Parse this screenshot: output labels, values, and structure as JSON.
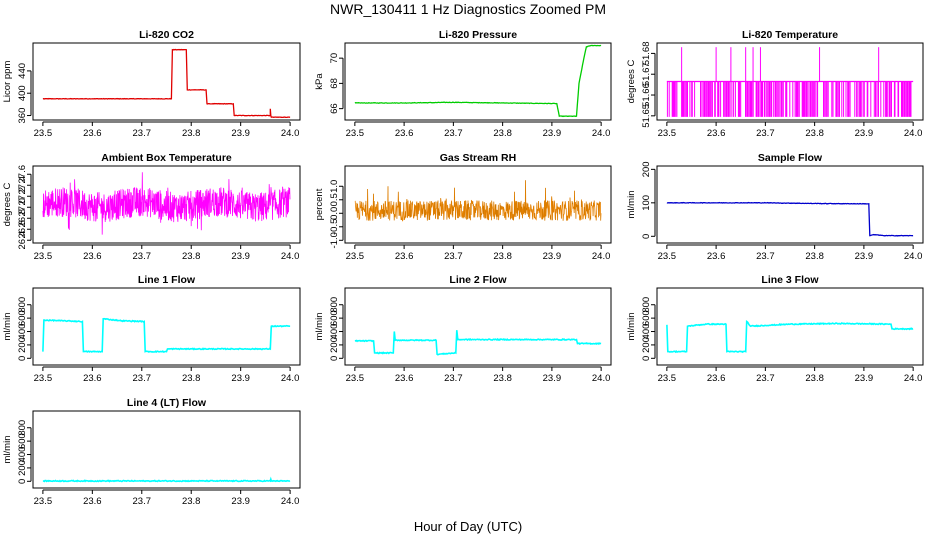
{
  "figure": {
    "title": "NWR_130411  1 Hz Diagnostics Zoomed PM",
    "xlabel": "Hour of Day (UTC)"
  },
  "chart_data": [
    {
      "type": "line",
      "title": "Li-820 CO2",
      "ylabel": "Licor ppm",
      "color": "#e00000",
      "xlim": [
        23.5,
        24.0
      ],
      "xticks": [
        23.5,
        23.6,
        23.7,
        23.8,
        23.9,
        24.0
      ],
      "ylim": [
        352,
        490
      ],
      "yticks": [
        360,
        400,
        440
      ],
      "series": [
        {
          "x": [
            23.5,
            23.76,
            23.762,
            23.79,
            23.792,
            23.83,
            23.832,
            23.885,
            23.887,
            23.96,
            23.96,
            23.961,
            23.962,
            24.0
          ],
          "y": [
            390,
            390,
            478,
            478,
            406,
            406,
            381,
            381,
            360,
            360,
            372,
            360,
            357,
            357
          ]
        }
      ]
    },
    {
      "type": "line",
      "title": "Li-820 Pressure",
      "ylabel": "kPa",
      "color": "#00cc00",
      "xlim": [
        23.5,
        24.0
      ],
      "xticks": [
        23.5,
        23.6,
        23.7,
        23.8,
        23.9,
        24.0
      ],
      "ylim": [
        65.1,
        71.2
      ],
      "yticks": [
        66,
        68,
        70
      ],
      "series": [
        {
          "x": [
            23.5,
            23.6,
            23.7,
            23.8,
            23.91,
            23.915,
            23.95,
            23.955,
            23.965,
            23.97,
            23.98,
            24.0
          ],
          "y": [
            66.45,
            66.45,
            66.5,
            66.45,
            66.4,
            65.4,
            65.4,
            68.0,
            70.0,
            70.9,
            71.0,
            71.0
          ]
        }
      ]
    },
    {
      "type": "line",
      "title": "Li-820 Temperature",
      "ylabel": "degrees C",
      "color": "#ff00ff",
      "xlim": [
        23.5,
        24.0
      ],
      "xticks": [
        23.5,
        23.6,
        23.7,
        23.8,
        23.9,
        24.0
      ],
      "ylim": [
        51.648,
        51.685
      ],
      "yticks": [
        51.65,
        51.66,
        51.67,
        51.68
      ],
      "series": [
        {
          "x": [
            23.5,
            24.0
          ],
          "y": [
            51.6665,
            51.6665
          ]
        }
      ]
    },
    {
      "type": "line",
      "title": "Ambient Box Temperature",
      "ylabel": "degrees C",
      "color": "#ff00ff",
      "xlim": [
        23.5,
        24.0
      ],
      "xticks": [
        23.5,
        23.6,
        23.7,
        23.8,
        23.9,
        24.0
      ],
      "ylim": [
        26.35,
        27.75
      ],
      "yticks": [
        26.4,
        26.6,
        26.8,
        27.0,
        27.2,
        27.4,
        27.6
      ],
      "series": [
        {
          "x": [
            23.5,
            24.0
          ],
          "y": [
            27.05,
            27.05
          ]
        }
      ]
    },
    {
      "type": "scatter",
      "title": "Gas Stream RH",
      "ylabel": "percent",
      "color": "#ff8c00",
      "xlim": [
        23.5,
        24.0
      ],
      "xticks": [
        23.5,
        23.6,
        23.7,
        23.8,
        23.9,
        24.0
      ],
      "ylim": [
        -1.1,
        1.75
      ],
      "yticks": [
        -1.0,
        -0.5,
        0.0,
        0.5,
        1.0
      ],
      "series": [
        {
          "x": [
            23.5,
            24.0
          ],
          "y": [
            0.1,
            0.1
          ]
        }
      ]
    },
    {
      "type": "line",
      "title": "Sample Flow",
      "ylabel": "ml/min",
      "color": "#0000cc",
      "xlim": [
        23.5,
        24.0
      ],
      "xticks": [
        23.5,
        23.6,
        23.7,
        23.8,
        23.9,
        24.0
      ],
      "ylim": [
        -20,
        210
      ],
      "yticks": [
        0,
        100,
        200
      ],
      "series": [
        {
          "x": [
            23.5,
            23.7,
            23.8,
            23.91,
            23.912,
            23.92,
            23.94,
            24.0
          ],
          "y": [
            100,
            100,
            98,
            97,
            2,
            5,
            2,
            2
          ]
        }
      ]
    },
    {
      "type": "line",
      "title": "Line 1 Flow",
      "ylabel": "ml/min",
      "color": "#00ffff",
      "xlim": [
        23.5,
        24.0
      ],
      "xticks": [
        23.5,
        23.6,
        23.7,
        23.8,
        23.9,
        24.0
      ],
      "ylim": [
        -100,
        1050
      ],
      "yticks": [
        0,
        200,
        400,
        600,
        800
      ],
      "series": [
        {
          "x": [
            23.5,
            23.502,
            23.54,
            23.58,
            23.582,
            23.62,
            23.622,
            23.66,
            23.705,
            23.707,
            23.75,
            23.752,
            23.96,
            23.962,
            24.0
          ],
          "y": [
            100,
            570,
            560,
            550,
            100,
            100,
            590,
            560,
            550,
            100,
            100,
            140,
            140,
            480,
            480
          ]
        }
      ]
    },
    {
      "type": "line",
      "title": "Line 2 Flow",
      "ylabel": "ml/min",
      "color": "#00ffff",
      "xlim": [
        23.5,
        24.0
      ],
      "xticks": [
        23.5,
        23.6,
        23.7,
        23.8,
        23.9,
        24.0
      ],
      "ylim": [
        -100,
        1050
      ],
      "yticks": [
        0,
        200,
        400,
        600,
        800
      ],
      "series": [
        {
          "x": [
            23.5,
            23.538,
            23.54,
            23.578,
            23.58,
            23.582,
            23.665,
            23.667,
            23.705,
            23.707,
            23.709,
            23.95,
            23.952,
            24.0
          ],
          "y": [
            260,
            260,
            80,
            80,
            400,
            270,
            270,
            60,
            80,
            420,
            280,
            280,
            220,
            220
          ]
        }
      ]
    },
    {
      "type": "line",
      "title": "Line 3 Flow",
      "ylabel": "ml/min",
      "color": "#00ffff",
      "xlim": [
        23.5,
        24.0
      ],
      "xticks": [
        23.5,
        23.6,
        23.7,
        23.8,
        23.9,
        24.0
      ],
      "ylim": [
        -100,
        1050
      ],
      "yticks": [
        0,
        200,
        400,
        600,
        800
      ],
      "series": [
        {
          "x": [
            23.5,
            23.502,
            23.504,
            23.54,
            23.542,
            23.58,
            23.62,
            23.622,
            23.66,
            23.662,
            23.67,
            23.75,
            23.85,
            23.955,
            23.957,
            24.0
          ],
          "y": [
            500,
            100,
            100,
            100,
            480,
            510,
            510,
            100,
            100,
            550,
            480,
            510,
            520,
            510,
            440,
            440
          ]
        }
      ]
    },
    {
      "type": "line",
      "title": "Line 4 (LT) Flow",
      "ylabel": "ml/min",
      "color": "#00ffff",
      "xlim": [
        23.5,
        24.0
      ],
      "xticks": [
        23.5,
        23.6,
        23.7,
        23.8,
        23.9,
        24.0
      ],
      "ylim": [
        -100,
        1050
      ],
      "yticks": [
        0,
        200,
        400,
        600,
        800
      ],
      "series": [
        {
          "x": [
            23.5,
            23.96,
            23.961,
            23.962,
            24.0
          ],
          "y": [
            5,
            5,
            30,
            5,
            5
          ]
        }
      ]
    }
  ]
}
